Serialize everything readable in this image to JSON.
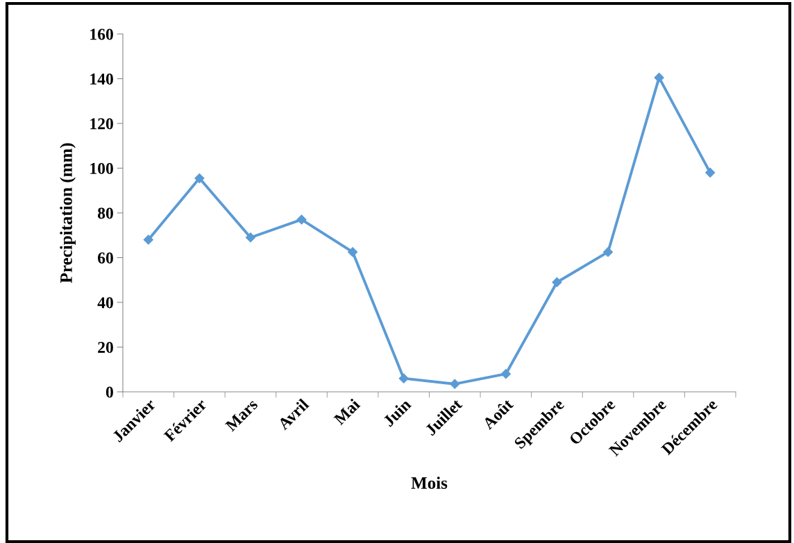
{
  "chart_data": {
    "type": "line",
    "xlabel": "Mois",
    "ylabel": "Precipitation (mm)",
    "categories": [
      "Janvier",
      "Février",
      "Mars",
      "Avril",
      "Mai",
      "Juin",
      "Juillet",
      "Août",
      "Spembre",
      "Octobre",
      "Novembre",
      "Décembre"
    ],
    "series": [
      {
        "color": "#5b9bd5",
        "values": [
          68,
          95.5,
          69,
          77,
          62.5,
          6,
          3.5,
          8,
          49,
          62.5,
          140.5,
          98
        ]
      }
    ],
    "ylim": [
      0,
      160
    ],
    "yticks": [
      0,
      20,
      40,
      60,
      80,
      100,
      120,
      140,
      160
    ],
    "marker": "diamond",
    "line_style": "solid"
  }
}
